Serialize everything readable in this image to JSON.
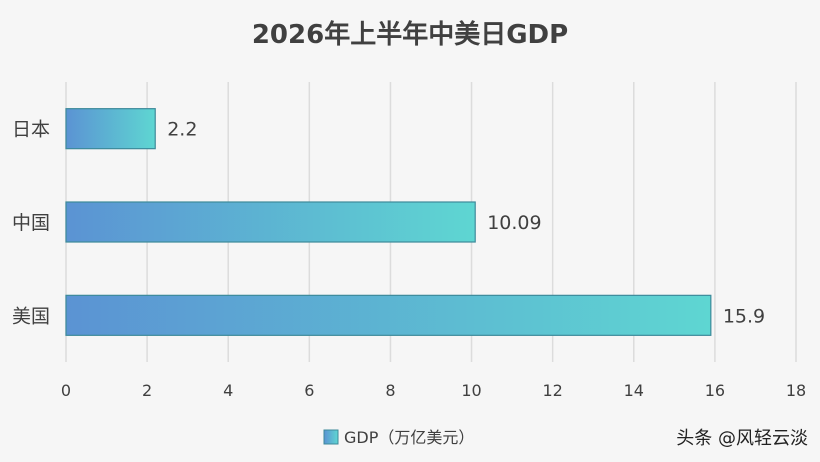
{
  "chart_data": {
    "type": "bar",
    "orientation": "horizontal",
    "title": "2026年上半年中美日GDP",
    "categories": [
      "日本",
      "中国",
      "美国"
    ],
    "series": [
      {
        "name": "GDP（万亿美元）",
        "values": [
          2.2,
          10.09,
          15.9
        ]
      }
    ],
    "data_labels": [
      "2.2",
      "10.09",
      "15.9"
    ],
    "xlim": [
      0,
      18
    ],
    "x_ticks": [
      "0",
      "2",
      "4",
      "6",
      "8",
      "10",
      "12",
      "14",
      "16",
      "18"
    ],
    "xlabel": "",
    "ylabel": "",
    "grid": true,
    "legend_position": "bottom"
  },
  "colors": {
    "bar_start": "#5b93d3",
    "bar_end": "#5ed6d2",
    "bar_stroke": "#3d8a9a",
    "grid": "#dcdcdc",
    "text": "#404040",
    "title": "#404040",
    "background": "#f6f6f6"
  },
  "watermark": "头条 @风轻云淡"
}
